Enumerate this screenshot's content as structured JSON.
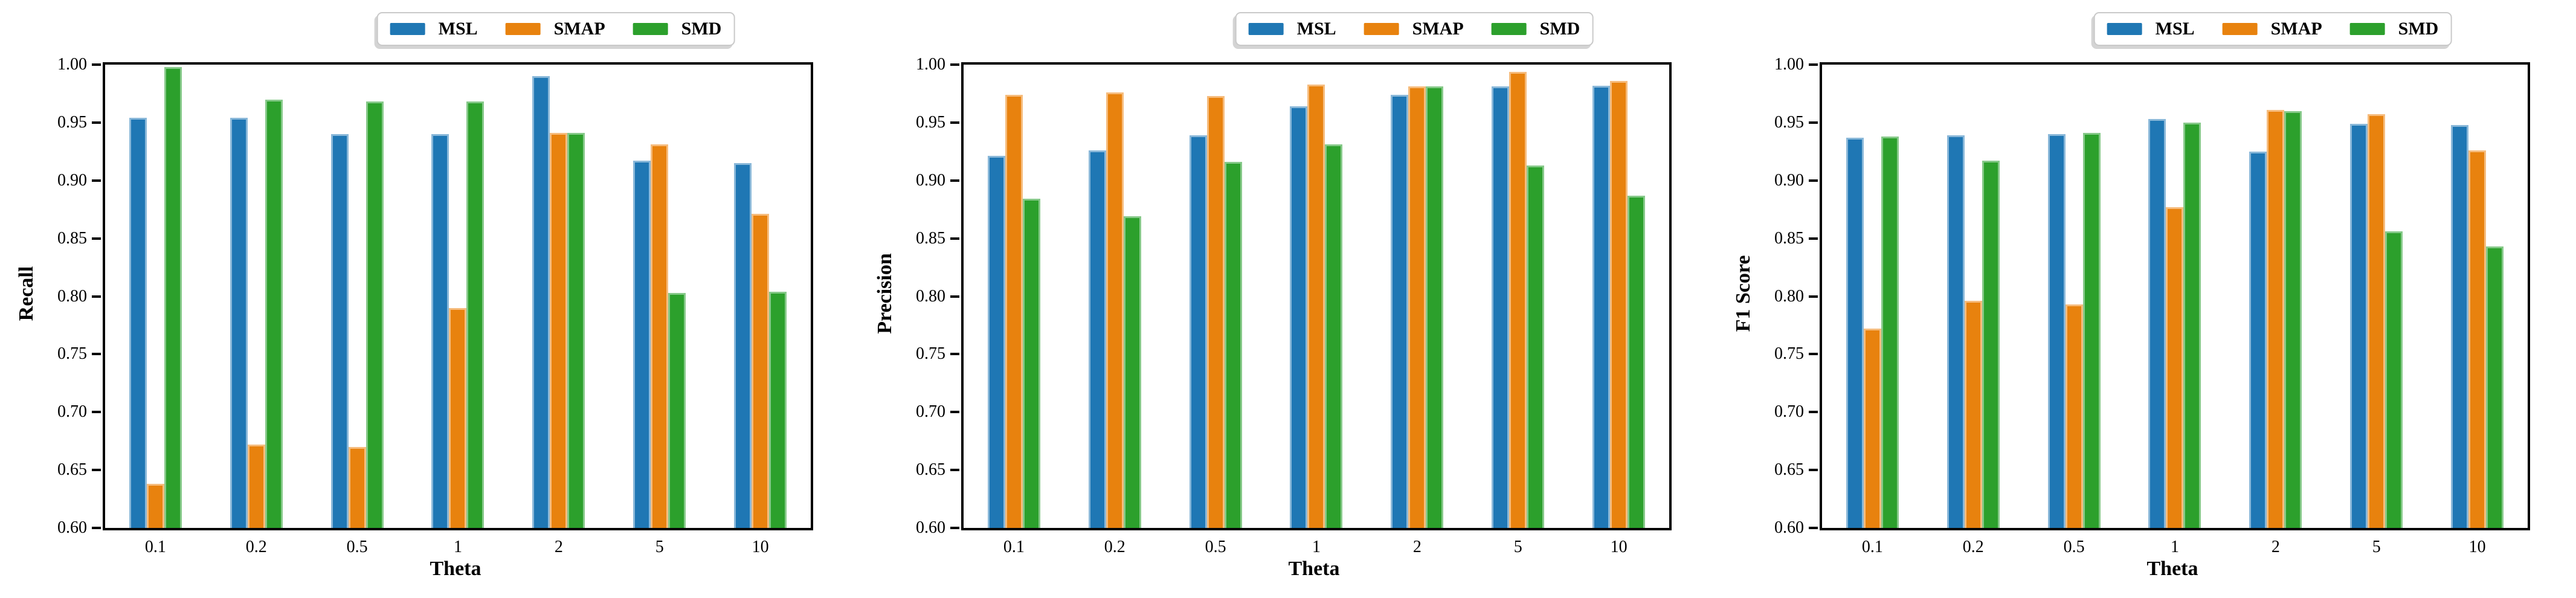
{
  "figure": {
    "background": "#ffffff",
    "legend_labels": [
      "MSL",
      "SMAP",
      "SMD"
    ]
  },
  "chart_data": [
    {
      "type": "bar",
      "title": "",
      "xlabel": "Theta",
      "ylabel": "Recall",
      "ylim": [
        0.6,
        1.0
      ],
      "yticks": [
        "1.00",
        "0.95",
        "0.90",
        "0.85",
        "0.80",
        "0.75",
        "0.70",
        "0.65",
        "0.60"
      ],
      "categories": [
        "0.1",
        "0.2",
        "0.5",
        "1",
        "2",
        "5",
        "10"
      ],
      "grid": false,
      "legend_position": "above-plot-right",
      "series": [
        {
          "name": "MSL",
          "color": "#1f77b4",
          "edge": "#8ab8d9",
          "values": [
            0.954,
            0.954,
            0.94,
            0.94,
            0.99,
            0.917,
            0.915
          ]
        },
        {
          "name": "SMAP",
          "color": "#e8820e",
          "edge": "#f6bc7d",
          "values": [
            0.638,
            0.672,
            0.67,
            0.79,
            0.941,
            0.931,
            0.871
          ]
        },
        {
          "name": "SMD",
          "color": "#2ca02c",
          "edge": "#86c989",
          "values": [
            0.998,
            0.97,
            0.968,
            0.968,
            0.941,
            0.803,
            0.804
          ]
        }
      ]
    },
    {
      "type": "bar",
      "title": "",
      "xlabel": "Theta",
      "ylabel": "Precision",
      "ylim": [
        0.6,
        1.0
      ],
      "yticks": [
        "1.00",
        "0.95",
        "0.90",
        "0.85",
        "0.80",
        "0.75",
        "0.70",
        "0.65",
        "0.60"
      ],
      "categories": [
        "0.1",
        "0.2",
        "0.5",
        "1",
        "2",
        "5",
        "10"
      ],
      "grid": false,
      "legend_position": "above-plot-right",
      "series": [
        {
          "name": "MSL",
          "color": "#1f77b4",
          "edge": "#8ab8d9",
          "values": [
            0.921,
            0.926,
            0.939,
            0.964,
            0.974,
            0.981,
            0.982
          ]
        },
        {
          "name": "SMAP",
          "color": "#e8820e",
          "edge": "#f6bc7d",
          "values": [
            0.974,
            0.976,
            0.973,
            0.983,
            0.981,
            0.994,
            0.986
          ]
        },
        {
          "name": "SMD",
          "color": "#2ca02c",
          "edge": "#86c989",
          "values": [
            0.884,
            0.869,
            0.916,
            0.931,
            0.981,
            0.913,
            0.887
          ]
        }
      ]
    },
    {
      "type": "bar",
      "title": "",
      "xlabel": "Theta",
      "ylabel": "F1 Score",
      "ylim": [
        0.6,
        1.0
      ],
      "yticks": [
        "1.00",
        "0.95",
        "0.90",
        "0.85",
        "0.80",
        "0.75",
        "0.70",
        "0.65",
        "0.60"
      ],
      "categories": [
        "0.1",
        "0.2",
        "0.5",
        "1",
        "2",
        "5",
        "10"
      ],
      "grid": false,
      "legend_position": "above-plot-right",
      "series": [
        {
          "name": "MSL",
          "color": "#1f77b4",
          "edge": "#8ab8d9",
          "values": [
            0.937,
            0.939,
            0.94,
            0.953,
            0.925,
            0.949,
            0.948
          ]
        },
        {
          "name": "SMAP",
          "color": "#e8820e",
          "edge": "#f6bc7d",
          "values": [
            0.772,
            0.796,
            0.793,
            0.877,
            0.961,
            0.957,
            0.926
          ]
        },
        {
          "name": "SMD",
          "color": "#2ca02c",
          "edge": "#86c989",
          "values": [
            0.938,
            0.917,
            0.941,
            0.95,
            0.96,
            0.856,
            0.843
          ]
        }
      ]
    }
  ]
}
